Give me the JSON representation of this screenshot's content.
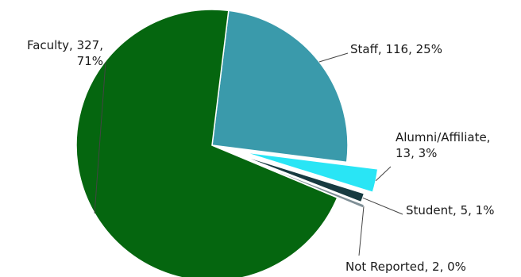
{
  "chart_data": {
    "type": "pie",
    "slices": [
      {
        "category": "Staff",
        "value": 116,
        "percent": "25%",
        "color": "#3a9aab",
        "label_lines": [
          "Staff, 116, 25%"
        ]
      },
      {
        "category": "Alumni/Affiliate",
        "value": 13,
        "percent": "3%",
        "color": "#29e5f5",
        "label_lines": [
          "Alumni/Affiliate,",
          "13, 3%"
        ],
        "exploded": true
      },
      {
        "category": "Student",
        "value": 5,
        "percent": "1%",
        "color": "#173a40",
        "label_lines": [
          "Student, 5, 1%"
        ],
        "exploded": true
      },
      {
        "category": "Not Reported",
        "value": 2,
        "percent": "0%",
        "color": "#7f8f96",
        "label_lines": [
          "Not Reported, 2, 0%"
        ],
        "exploded": true
      },
      {
        "category": "Faculty",
        "value": 327,
        "percent": "71%",
        "color": "#05660f",
        "label_lines": [
          "Faculty, 327,",
          "71%"
        ]
      }
    ],
    "start_angle_deg": 7,
    "direction": "clockwise",
    "legend": "none"
  }
}
